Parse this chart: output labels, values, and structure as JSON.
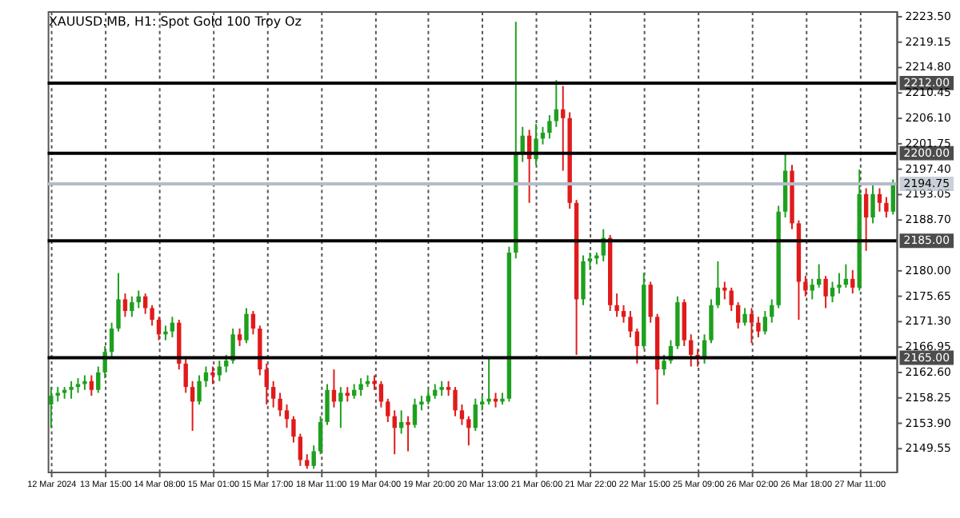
{
  "chart_data": {
    "type": "candlestick",
    "title": "XAUUSD.MB, H1:  Spot Gold 100 Troy Oz",
    "categories": [
      "12 Mar 2024",
      null,
      null,
      null,
      null,
      null,
      null,
      null,
      "13 Mar 15:00",
      null,
      null,
      null,
      null,
      null,
      null,
      null,
      "14 Mar 08:00",
      null,
      null,
      null,
      null,
      null,
      null,
      null,
      "15 Mar 01:00",
      null,
      null,
      null,
      null,
      null,
      null,
      null,
      "15 Mar 17:00",
      null,
      null,
      null,
      null,
      null,
      null,
      null,
      "18 Mar 11:00",
      null,
      null,
      null,
      null,
      null,
      null,
      null,
      "19 Mar 04:00",
      null,
      null,
      null,
      null,
      null,
      null,
      null,
      "19 Mar 20:00",
      null,
      null,
      null,
      null,
      null,
      null,
      null,
      "20 Mar 13:00",
      null,
      null,
      null,
      null,
      null,
      null,
      null,
      "21 Mar 06:00",
      null,
      null,
      null,
      null,
      null,
      null,
      null,
      "21 Mar 22:00",
      null,
      null,
      null,
      null,
      null,
      null,
      null,
      "22 Mar 15:00",
      null,
      null,
      null,
      null,
      null,
      null,
      null,
      "25 Mar 09:00",
      null,
      null,
      null,
      null,
      null,
      null,
      null,
      "26 Mar 02:00",
      null,
      null,
      null,
      null,
      null,
      null,
      null,
      "26 Mar 18:00",
      null,
      null,
      null,
      null,
      null,
      null,
      null,
      "27 Mar 11:00",
      null,
      null,
      null,
      null,
      null
    ],
    "ohlc": [
      [
        2157,
        2160,
        2153,
        2158.5
      ],
      [
        2158.5,
        2160,
        2157.5,
        2159
      ],
      [
        2159,
        2160,
        2158,
        2159.5
      ],
      [
        2159.5,
        2161,
        2158,
        2160
      ],
      [
        2160,
        2161.5,
        2159,
        2160.5
      ],
      [
        2160.5,
        2162,
        2159.5,
        2161
      ],
      [
        2161,
        2162,
        2158.5,
        2159.5
      ],
      [
        2159.5,
        2163.5,
        2159,
        2162.5
      ],
      [
        2162.5,
        2167,
        2161.5,
        2166
      ],
      [
        2166,
        2171,
        2165,
        2170
      ],
      [
        2170,
        2179.5,
        2169.5,
        2175
      ],
      [
        2175,
        2176,
        2172,
        2173
      ],
      [
        2173,
        2175.5,
        2172,
        2174.5
      ],
      [
        2174.5,
        2176.5,
        2173.5,
        2175.5
      ],
      [
        2175.5,
        2176,
        2172.5,
        2173.5
      ],
      [
        2173.5,
        2174,
        2170.5,
        2171.5
      ],
      [
        2171.5,
        2172,
        2168,
        2169
      ],
      [
        2169,
        2170.5,
        2168,
        2169.5
      ],
      [
        2169.5,
        2172,
        2168.5,
        2171
      ],
      [
        2171,
        2171.5,
        2163,
        2164
      ],
      [
        2164,
        2165,
        2159,
        2160
      ],
      [
        2160,
        2161,
        2152.5,
        2157.5
      ],
      [
        2157.5,
        2162,
        2157,
        2161
      ],
      [
        2161,
        2163.5,
        2160,
        2162.5
      ],
      [
        2162.5,
        2163.5,
        2160.5,
        2162
      ],
      [
        2162,
        2164.5,
        2161,
        2163.5
      ],
      [
        2163.5,
        2165.5,
        2162.5,
        2164.5
      ],
      [
        2164.5,
        2170,
        2164,
        2169
      ],
      [
        2169,
        2170,
        2167,
        2168
      ],
      [
        2168,
        2173.5,
        2167.5,
        2172.5
      ],
      [
        2172.5,
        2173,
        2169,
        2170
      ],
      [
        2170,
        2170.5,
        2162,
        2163
      ],
      [
        2163,
        2164,
        2157,
        2160
      ],
      [
        2160,
        2161,
        2156.5,
        2158
      ],
      [
        2158,
        2159,
        2155,
        2156
      ],
      [
        2156,
        2157,
        2153,
        2154.5
      ],
      [
        2154.5,
        2155,
        2150.5,
        2151.5
      ],
      [
        2151.5,
        2152,
        2146.5,
        2147.5
      ],
      [
        2147.5,
        2148.5,
        2146,
        2146.5
      ],
      [
        2146.5,
        2150,
        2146,
        2149
      ],
      [
        2149,
        2155,
        2148.5,
        2154
      ],
      [
        2154,
        2160.5,
        2153.5,
        2159.5
      ],
      [
        2159.5,
        2163,
        2156.5,
        2157.5
      ],
      [
        2157.5,
        2160,
        2153,
        2159
      ],
      [
        2159,
        2160,
        2157.5,
        2158.5
      ],
      [
        2158.5,
        2160.5,
        2158,
        2159.5
      ],
      [
        2159.5,
        2161.5,
        2158.5,
        2160.5
      ],
      [
        2160.5,
        2162,
        2160,
        2161
      ],
      [
        2161,
        2162,
        2159.5,
        2160.5
      ],
      [
        2160.5,
        2161,
        2156.5,
        2157.5
      ],
      [
        2157.5,
        2158,
        2154,
        2155
      ],
      [
        2155,
        2156,
        2148.5,
        2153
      ],
      [
        2153,
        2156,
        2152,
        2154
      ],
      [
        2154,
        2155,
        2149,
        2153.5
      ],
      [
        2153.5,
        2158,
        2153,
        2157
      ],
      [
        2157,
        2158.5,
        2156,
        2157.5
      ],
      [
        2157.5,
        2159.5,
        2157,
        2158.5
      ],
      [
        2158.5,
        2160.5,
        2158,
        2159.5
      ],
      [
        2159.5,
        2161,
        2158.5,
        2160
      ],
      [
        2160,
        2161,
        2158.5,
        2159.5
      ],
      [
        2159.5,
        2160,
        2155,
        2156
      ],
      [
        2156,
        2157,
        2153.5,
        2154.5
      ],
      [
        2154.5,
        2155,
        2150,
        2153
      ],
      [
        2153,
        2158,
        2152.5,
        2157
      ],
      [
        2157,
        2158.5,
        2156,
        2157.5
      ],
      [
        2157.5,
        2165,
        2157,
        2158
      ],
      [
        2158,
        2159,
        2156.5,
        2157.5
      ],
      [
        2157.5,
        2159,
        2157,
        2158
      ],
      [
        2158,
        2184,
        2157.5,
        2183
      ],
      [
        2183,
        2222.5,
        2182,
        2200
      ],
      [
        2200,
        2204.5,
        2198.5,
        2203
      ],
      [
        2203,
        2204,
        2191.5,
        2199
      ],
      [
        2199,
        2205,
        2198,
        2202.5
      ],
      [
        2202.5,
        2204.5,
        2201.5,
        2203.5
      ],
      [
        2203.5,
        2206.5,
        2202.5,
        2205.5
      ],
      [
        2205.5,
        2212.5,
        2204.5,
        2207.5
      ],
      [
        2207.5,
        2211.5,
        2197,
        2206
      ],
      [
        2206,
        2207,
        2190.5,
        2191.5
      ],
      [
        2191.5,
        2192,
        2165.5,
        2175
      ],
      [
        2175,
        2182.5,
        2174,
        2181.5
      ],
      [
        2181.5,
        2183,
        2180,
        2182
      ],
      [
        2182,
        2183,
        2181,
        2182.5
      ],
      [
        2182.5,
        2187,
        2181.5,
        2185.5
      ],
      [
        2185.5,
        2186,
        2173,
        2174
      ],
      [
        2174,
        2176,
        2172,
        2173
      ],
      [
        2173,
        2174,
        2171,
        2172
      ],
      [
        2172,
        2173,
        2168.5,
        2169.5
      ],
      [
        2169.5,
        2170,
        2164,
        2167
      ],
      [
        2167,
        2179.5,
        2166.5,
        2177.5
      ],
      [
        2177.5,
        2178,
        2171,
        2172
      ],
      [
        2172,
        2172.5,
        2157,
        2163
      ],
      [
        2163,
        2165.5,
        2162,
        2164.5
      ],
      [
        2164.5,
        2168,
        2164,
        2167
      ],
      [
        2167,
        2175.5,
        2166.5,
        2174.5
      ],
      [
        2174.5,
        2175,
        2167,
        2168
      ],
      [
        2168,
        2169,
        2163.5,
        2165.5
      ],
      [
        2165.5,
        2166.5,
        2163.5,
        2165
      ],
      [
        2165,
        2169,
        2164,
        2168
      ],
      [
        2168,
        2175,
        2167.5,
        2174
      ],
      [
        2174,
        2181.5,
        2173.5,
        2177
      ],
      [
        2177,
        2178,
        2175,
        2176.5
      ],
      [
        2176.5,
        2177,
        2173,
        2174
      ],
      [
        2174,
        2174.5,
        2170,
        2171
      ],
      [
        2171,
        2173.5,
        2170.5,
        2172.5
      ],
      [
        2172.5,
        2173.5,
        2167.5,
        2171
      ],
      [
        2171,
        2172,
        2168.5,
        2169.5
      ],
      [
        2169.5,
        2173,
        2169,
        2172
      ],
      [
        2172,
        2175,
        2171,
        2174
      ],
      [
        2174,
        2191,
        2173.5,
        2190
      ],
      [
        2190,
        2199.8,
        2189,
        2197
      ],
      [
        2197,
        2198,
        2187,
        2188
      ],
      [
        2188,
        2188.5,
        2171.5,
        2178
      ],
      [
        2178,
        2179,
        2175.5,
        2176.5
      ],
      [
        2176.5,
        2178.5,
        2175,
        2177.5
      ],
      [
        2177.5,
        2181,
        2177,
        2178.5
      ],
      [
        2178.5,
        2179,
        2173.5,
        2175.5
      ],
      [
        2175.5,
        2178,
        2174.5,
        2177
      ],
      [
        2177,
        2179.5,
        2176,
        2177.5
      ],
      [
        2177.5,
        2181,
        2177,
        2178.5
      ],
      [
        2178.5,
        2180,
        2176,
        2177
      ],
      [
        2177,
        2197.2,
        2176.5,
        2193
      ],
      [
        2193,
        2194,
        2183.3,
        2189
      ],
      [
        2189,
        2194.5,
        2188,
        2193
      ],
      [
        2193,
        2194,
        2190,
        2191.5
      ],
      [
        2191.5,
        2192.5,
        2189,
        2190
      ],
      [
        2190,
        2195.5,
        2189.5,
        2194.75
      ]
    ],
    "colors": [
      "#1ea01e",
      "#1ea01e",
      "#1ea01e",
      "#1ea01e",
      "#1ea01e",
      "#1ea01e",
      "#e01b1b",
      "#1ea01e",
      "#1ea01e",
      "#1ea01e",
      "#1ea01e",
      "#e01b1b",
      "#1ea01e",
      "#1ea01e",
      "#e01b1b",
      "#e01b1b",
      "#e01b1b",
      "#1ea01e",
      "#1ea01e",
      "#e01b1b",
      "#e01b1b",
      "#e01b1b",
      "#1ea01e",
      "#1ea01e",
      "#e01b1b",
      "#1ea01e",
      "#1ea01e",
      "#1ea01e",
      "#e01b1b",
      "#1ea01e",
      "#e01b1b",
      "#e01b1b",
      "#e01b1b",
      "#e01b1b",
      "#e01b1b",
      "#e01b1b",
      "#e01b1b",
      "#e01b1b",
      "#e01b1b",
      "#1ea01e",
      "#1ea01e",
      "#1ea01e",
      "#e01b1b",
      "#1ea01e",
      "#e01b1b",
      "#1ea01e",
      "#1ea01e",
      "#1ea01e",
      "#e01b1b",
      "#e01b1b",
      "#e01b1b",
      "#e01b1b",
      "#1ea01e",
      "#e01b1b",
      "#1ea01e",
      "#1ea01e",
      "#1ea01e",
      "#1ea01e",
      "#1ea01e",
      "#e01b1b",
      "#e01b1b",
      "#e01b1b",
      "#e01b1b",
      "#1ea01e",
      "#1ea01e",
      "#1ea01e",
      "#e01b1b",
      "#1ea01e",
      "#1ea01e",
      "#1ea01e",
      "#1ea01e",
      "#e01b1b",
      "#1ea01e",
      "#1ea01e",
      "#1ea01e",
      "#1ea01e",
      "#e01b1b",
      "#e01b1b",
      "#e01b1b",
      "#1ea01e",
      "#1ea01e",
      "#1ea01e",
      "#1ea01e",
      "#e01b1b",
      "#e01b1b",
      "#e01b1b",
      "#e01b1b",
      "#e01b1b",
      "#1ea01e",
      "#e01b1b",
      "#e01b1b",
      "#1ea01e",
      "#1ea01e",
      "#1ea01e",
      "#e01b1b",
      "#e01b1b",
      "#e01b1b",
      "#1ea01e",
      "#1ea01e",
      "#1ea01e",
      "#e01b1b",
      "#e01b1b",
      "#e01b1b",
      "#1ea01e",
      "#e01b1b",
      "#e01b1b",
      "#1ea01e",
      "#1ea01e",
      "#1ea01e",
      "#1ea01e",
      "#e01b1b",
      "#e01b1b",
      "#e01b1b",
      "#1ea01e",
      "#1ea01e",
      "#e01b1b",
      "#1ea01e",
      "#1ea01e",
      "#1ea01e",
      "#e01b1b",
      "#1ea01e",
      "#e01b1b",
      "#1ea01e",
      "#e01b1b",
      "#e01b1b",
      "#1ea01e"
    ],
    "ylim": [
      2145.5,
      2224.3
    ],
    "yticks": [
      {
        "value": 2223.5,
        "label": "2223.50"
      },
      {
        "value": 2219.15,
        "label": "2219.15"
      },
      {
        "value": 2214.8,
        "label": "2214.80"
      },
      {
        "value": 2210.45,
        "label": "2210.45"
      },
      {
        "value": 2206.1,
        "label": "2206.10"
      },
      {
        "value": 2201.75,
        "label": "2201.75"
      },
      {
        "value": 2197.4,
        "label": "2197.40"
      },
      {
        "value": 2193.05,
        "label": "2193.05"
      },
      {
        "value": 2188.7,
        "label": "2188.70"
      },
      {
        "value": 2180,
        "label": "2180.00"
      },
      {
        "value": 2175.65,
        "label": "2175.65"
      },
      {
        "value": 2171.3,
        "label": "2171.30"
      },
      {
        "value": 2166.95,
        "label": "2166.95"
      },
      {
        "value": 2162.6,
        "label": "2162.60"
      },
      {
        "value": 2158.25,
        "label": "2158.25"
      },
      {
        "value": 2153.9,
        "label": "2153.90"
      },
      {
        "value": 2149.55,
        "label": "2149.55"
      }
    ],
    "ref_lines": [
      {
        "axis": "y",
        "value": 2212,
        "label": "2212.00",
        "color": "#000000"
      },
      {
        "axis": "y",
        "value": 2200,
        "label": "2200.00",
        "color": "#000000"
      },
      {
        "axis": "y",
        "value": 2185,
        "label": "2185.00",
        "color": "#000000"
      },
      {
        "axis": "y",
        "value": 2165,
        "label": "2165.00",
        "color": "#000000"
      },
      {
        "axis": "y",
        "value": 2194.75,
        "label": "2194.75",
        "color": "#b4bcc8"
      }
    ],
    "grid": "x"
  }
}
